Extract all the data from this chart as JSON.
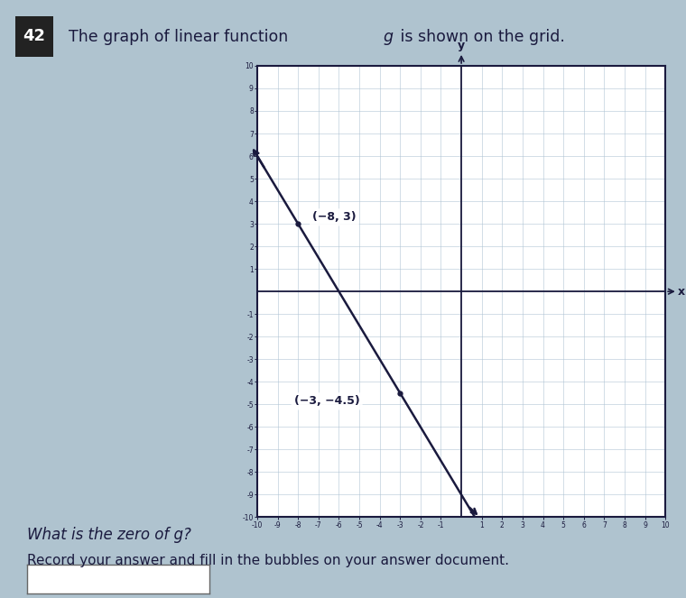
{
  "title_number": "42",
  "title_text": "The graph of linear function  g  is shown on the grid.",
  "question_text": "What is the zero of g?",
  "record_text": "Record your answer and fill in the bubbles on your answer document.",
  "bg_color": "#afc3cf",
  "grid_bg": "#ffffff",
  "line_color": "#1a1a3e",
  "point1": [
    -8,
    3
  ],
  "point2": [
    -3,
    -4.5
  ],
  "xlim": [
    -10,
    10
  ],
  "ylim": [
    -10,
    10
  ],
  "axis_label_color": "#1a1a3e",
  "grid_minor_color": "#b0c4d4",
  "label1_text": "(−8, 3)",
  "label2_text": "(−3, −4.5)",
  "annotation_color": "#1a1a3e",
  "slope": -1.5,
  "intercept": -9.0
}
